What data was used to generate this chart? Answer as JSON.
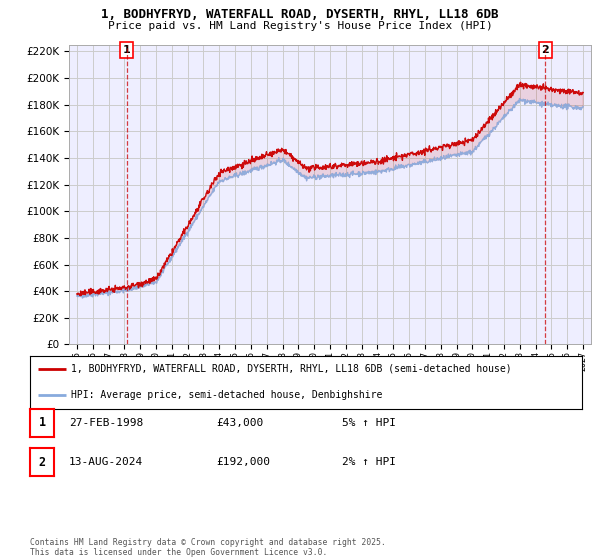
{
  "title1": "1, BODHYFRYD, WATERFALL ROAD, DYSERTH, RHYL, LL18 6DB",
  "title2": "Price paid vs. HM Land Registry's House Price Index (HPI)",
  "background_color": "#ffffff",
  "grid_color": "#cccccc",
  "plot_bg": "#eeeeff",
  "red_line_color": "#cc0000",
  "blue_line_color": "#88aadd",
  "sale1_year": 1998.15,
  "sale1_price": 43000,
  "sale2_year": 2024.62,
  "sale2_price": 192000,
  "legend_line1": "1, BODHYFRYD, WATERFALL ROAD, DYSERTH, RHYL, LL18 6DB (semi-detached house)",
  "legend_line2": "HPI: Average price, semi-detached house, Denbighshire",
  "table_row1": [
    "1",
    "27-FEB-1998",
    "£43,000",
    "5% ↑ HPI"
  ],
  "table_row2": [
    "2",
    "13-AUG-2024",
    "£192,000",
    "2% ↑ HPI"
  ],
  "footer": "Contains HM Land Registry data © Crown copyright and database right 2025.\nThis data is licensed under the Open Government Licence v3.0.",
  "ylim": [
    0,
    225000
  ],
  "xlim_start": 1994.5,
  "xlim_end": 2027.5
}
